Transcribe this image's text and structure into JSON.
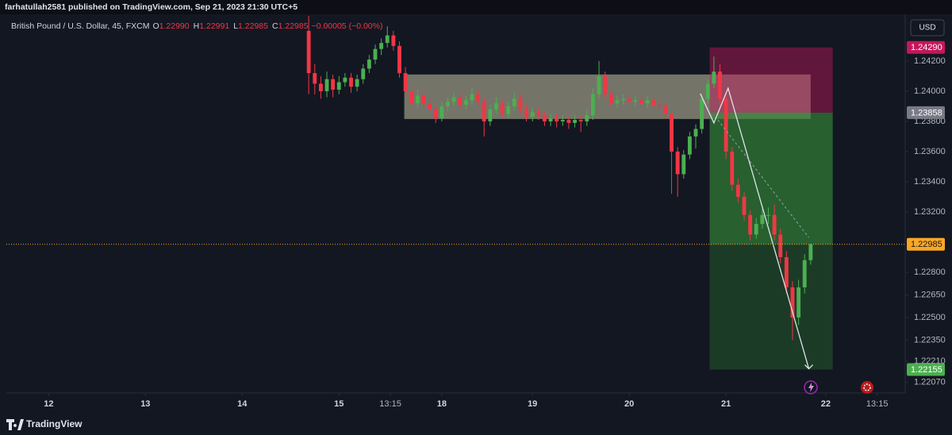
{
  "header": {
    "text": "farhatullah2581 published on TradingView.com, Sep 21, 2023 21:30 UTC+5"
  },
  "footer": {
    "brand": "TradingView"
  },
  "currency_button": "USD",
  "chart_data": {
    "type": "candlestick",
    "legend": {
      "symbol": "British Pound / U.S. Dollar, 45, FXCM",
      "ohlc": [
        {
          "label": "O",
          "value": "1.22990"
        },
        {
          "label": "H",
          "value": "1.22991"
        },
        {
          "label": "L",
          "value": "1.22985"
        },
        {
          "label": "C",
          "value": "1.22985"
        }
      ],
      "change": "−0.00005 (−0.00%)"
    },
    "up_color": "#4caf50",
    "down_color": "#f23645",
    "xlim": [
      -14,
      283
    ],
    "ylim": [
      1.22,
      1.2451
    ],
    "grid": false,
    "xticks": [
      {
        "value": 0,
        "label": "12"
      },
      {
        "value": 32,
        "label": "13"
      },
      {
        "value": 64,
        "label": "14"
      },
      {
        "value": 96,
        "label": "15"
      },
      {
        "value": 113,
        "label": "13:15"
      },
      {
        "value": 130,
        "label": "18"
      },
      {
        "value": 160,
        "label": "19"
      },
      {
        "value": 192,
        "label": "20"
      },
      {
        "value": 224,
        "label": "21"
      },
      {
        "value": 257,
        "label": "22"
      },
      {
        "value": 274,
        "label": "13:15"
      }
    ],
    "yticks": [
      {
        "value": 1.242,
        "label": "1.24200"
      },
      {
        "value": 1.24,
        "label": "1.24000"
      },
      {
        "value": 1.238,
        "label": "1.23800"
      },
      {
        "value": 1.236,
        "label": "1.23600"
      },
      {
        "value": 1.234,
        "label": "1.23400"
      },
      {
        "value": 1.232,
        "label": "1.23200"
      },
      {
        "value": 1.228,
        "label": "1.22800"
      },
      {
        "value": 1.2265,
        "label": "1.22650"
      },
      {
        "value": 1.225,
        "label": "1.22500"
      },
      {
        "value": 1.2235,
        "label": "1.22350"
      },
      {
        "value": 1.2221,
        "label": "1.22210"
      },
      {
        "value": 1.2207,
        "label": "1.22070"
      }
    ],
    "price_labels": [
      {
        "value": 1.2429,
        "label": "1.24290",
        "color": "#c2185b"
      },
      {
        "value": 1.23858,
        "label": "1.23858",
        "color": "#787b86"
      },
      {
        "value": 1.22985,
        "label": "1.22985",
        "color": "#f9a825"
      },
      {
        "value": 1.22155,
        "label": "1.22155",
        "color": "#4caf50"
      }
    ],
    "last_price": 1.22985,
    "zone": {
      "x": [
        117.6,
        252
      ],
      "y": [
        1.24111,
        1.23816
      ],
      "color": "#b8b29a"
    },
    "position": {
      "x": [
        218.6,
        259.3
      ],
      "stop": 1.2429,
      "entry": 1.23858,
      "target": 1.22155
    },
    "drawings": [
      {
        "x": [
          215.5,
          220,
          224.7,
          251.4
        ],
        "y": [
          1.23984,
          1.2379,
          1.2402,
          1.2216
        ],
        "color": "#e0e3eb"
      },
      {
        "x": [
          221.3,
          251.4
        ],
        "y": [
          1.2381,
          1.2303
        ],
        "color": "#9aa0a6",
        "dashed": true
      }
    ],
    "series": {
      "x": [
        86,
        88,
        90,
        92,
        94,
        96,
        98,
        100,
        102,
        104,
        106,
        108,
        110,
        112,
        114,
        116,
        118,
        120,
        122,
        124,
        126,
        128,
        130,
        132,
        134,
        136,
        138,
        140,
        142,
        144,
        146,
        148,
        150,
        152,
        154,
        156,
        158,
        160,
        162,
        164,
        166,
        168,
        170,
        172,
        174,
        176,
        178,
        180,
        182,
        184,
        186,
        188,
        190,
        192,
        194,
        196,
        198,
        200,
        202,
        204,
        206,
        208,
        210,
        212,
        214,
        216,
        218,
        220,
        222,
        224,
        226,
        228,
        230,
        232,
        234,
        236,
        238,
        240,
        242,
        244,
        246,
        248,
        250,
        252
      ],
      "open": [
        1.244,
        1.2412,
        1.2405,
        1.24,
        1.2408,
        1.2401,
        1.2406,
        1.2409,
        1.2403,
        1.2408,
        1.2415,
        1.2421,
        1.2428,
        1.2432,
        1.2437,
        1.243,
        1.2412,
        1.24,
        1.2392,
        1.2397,
        1.2392,
        1.2388,
        1.2382,
        1.239,
        1.2393,
        1.2396,
        1.2391,
        1.2394,
        1.2398,
        1.2393,
        1.238,
        1.2388,
        1.2392,
        1.2385,
        1.239,
        1.2395,
        1.2388,
        1.2383,
        1.2386,
        1.2384,
        1.238,
        1.2382,
        1.238,
        1.2381,
        1.2379,
        1.2381,
        1.238,
        1.2384,
        1.2398,
        1.241,
        1.2398,
        1.2392,
        1.2394,
        1.2395,
        1.2393,
        1.2394,
        1.2392,
        1.2394,
        1.2391,
        1.239,
        1.2385,
        1.236,
        1.2345,
        1.2358,
        1.237,
        1.2375,
        1.2395,
        1.2405,
        1.2413,
        1.2395,
        1.236,
        1.2338,
        1.233,
        1.2318,
        1.2305,
        1.2312,
        1.2318,
        1.2318,
        1.2305,
        1.229,
        1.227,
        1.225,
        1.227,
        1.2288
      ],
      "high": [
        1.245,
        1.2418,
        1.241,
        1.2413,
        1.2411,
        1.241,
        1.2412,
        1.2412,
        1.2411,
        1.2418,
        1.2424,
        1.2431,
        1.2435,
        1.2443,
        1.244,
        1.2433,
        1.2416,
        1.2404,
        1.2401,
        1.24,
        1.2395,
        1.2391,
        1.2393,
        1.2396,
        1.2399,
        1.2399,
        1.2397,
        1.2402,
        1.2401,
        1.2396,
        1.2391,
        1.2396,
        1.2395,
        1.2393,
        1.2399,
        1.2398,
        1.2391,
        1.2389,
        1.2389,
        1.2387,
        1.2385,
        1.2385,
        1.2384,
        1.2384,
        1.2384,
        1.2384,
        1.2388,
        1.2402,
        1.242,
        1.2413,
        1.2401,
        1.2397,
        1.2398,
        1.2398,
        1.2397,
        1.2397,
        1.2397,
        1.2397,
        1.2394,
        1.2393,
        1.2388,
        1.2363,
        1.2361,
        1.2373,
        1.2378,
        1.2398,
        1.2408,
        1.2423,
        1.2418,
        1.2398,
        1.2363,
        1.2342,
        1.2333,
        1.2321,
        1.2316,
        1.2322,
        1.2323,
        1.2325,
        1.2309,
        1.2294,
        1.2274,
        1.2275,
        1.2292,
        1.22991
      ],
      "low": [
        1.2398,
        1.2398,
        1.2395,
        1.2396,
        1.2396,
        1.2398,
        1.2403,
        1.2399,
        1.24,
        1.2405,
        1.2412,
        1.2418,
        1.2424,
        1.2429,
        1.2427,
        1.2409,
        1.2396,
        1.2388,
        1.2389,
        1.2389,
        1.2384,
        1.2379,
        1.238,
        1.2387,
        1.239,
        1.2388,
        1.2388,
        1.2391,
        1.239,
        1.237,
        1.2377,
        1.2385,
        1.2382,
        1.2382,
        1.2387,
        1.2385,
        1.238,
        1.238,
        1.2381,
        1.2377,
        1.2377,
        1.2376,
        1.2377,
        1.2375,
        1.2376,
        1.2373,
        1.2377,
        1.2381,
        1.2395,
        1.2395,
        1.2389,
        1.2389,
        1.2391,
        1.239,
        1.239,
        1.2389,
        1.2389,
        1.2388,
        1.2387,
        1.2382,
        1.2332,
        1.233,
        1.2342,
        1.2355,
        1.2362,
        1.2372,
        1.2392,
        1.2402,
        1.239,
        1.2355,
        1.2334,
        1.2326,
        1.2314,
        1.2301,
        1.2302,
        1.2309,
        1.2312,
        1.2301,
        1.2286,
        1.2266,
        1.2235,
        1.2245,
        1.2266,
        1.2285
      ],
      "close": [
        1.2412,
        1.2405,
        1.24,
        1.2408,
        1.2401,
        1.2406,
        1.2409,
        1.2403,
        1.2408,
        1.2415,
        1.2421,
        1.2428,
        1.2432,
        1.2437,
        1.243,
        1.2412,
        1.24,
        1.2392,
        1.2397,
        1.2392,
        1.2388,
        1.2382,
        1.239,
        1.2393,
        1.2396,
        1.2391,
        1.2394,
        1.2398,
        1.2393,
        1.238,
        1.2388,
        1.2392,
        1.2385,
        1.239,
        1.2395,
        1.2388,
        1.2383,
        1.2386,
        1.2384,
        1.238,
        1.2382,
        1.238,
        1.2381,
        1.2379,
        1.2381,
        1.238,
        1.2384,
        1.2398,
        1.241,
        1.2398,
        1.2392,
        1.2394,
        1.2395,
        1.2393,
        1.2394,
        1.2392,
        1.2394,
        1.2391,
        1.239,
        1.2385,
        1.236,
        1.2345,
        1.2358,
        1.237,
        1.2375,
        1.2395,
        1.2405,
        1.2413,
        1.2395,
        1.236,
        1.2338,
        1.233,
        1.2318,
        1.2305,
        1.2312,
        1.2318,
        1.2318,
        1.2305,
        1.229,
        1.227,
        1.225,
        1.227,
        1.2288,
        1.22985
      ]
    }
  }
}
